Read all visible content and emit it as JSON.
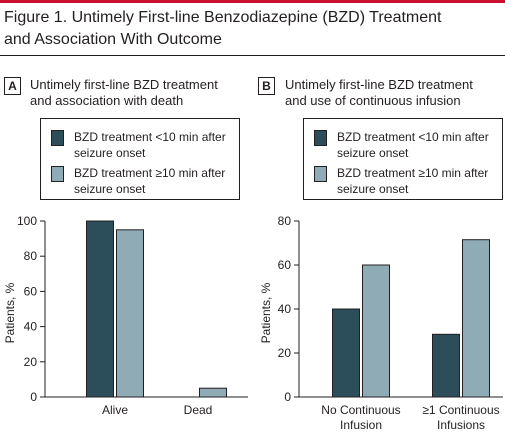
{
  "figure": {
    "title_line1": "Figure 1. Untimely First-line Benzodiazepine (BZD) Treatment",
    "title_line2": "and Association With Outcome"
  },
  "colors": {
    "accent_rule": "#c8102e",
    "series_early": "#2c4d5a",
    "series_late": "#8fabb6"
  },
  "panels": [
    {
      "letter": "A",
      "title_line1": "Untimely first-line BZD treatment",
      "title_line2": "and association with death",
      "legend": [
        {
          "line1": "BZD treatment <10 min after",
          "line2": "seizure onset"
        },
        {
          "line1": "BZD treatment ≥10 min after",
          "line2": "seizure onset"
        }
      ]
    },
    {
      "letter": "B",
      "title_line1": "Untimely first-line BZD treatment",
      "title_line2": "and use of continuous infusion",
      "legend": [
        {
          "line1": "BZD treatment <10 min after",
          "line2": "seizure onset"
        },
        {
          "line1": "BZD treatment ≥10 min after",
          "line2": "seizure onset"
        }
      ]
    }
  ],
  "chart_data": [
    {
      "type": "bar",
      "categories": [
        [
          "Alive"
        ],
        [
          "Dead"
        ]
      ],
      "series": [
        {
          "name": "BZD treatment <10 min after seizure onset",
          "values": [
            100,
            0
          ]
        },
        {
          "name": "BZD treatment ≥10 min after seizure onset",
          "values": [
            95,
            5
          ]
        }
      ],
      "ylabel": "Patients, %",
      "ylim": [
        0,
        100
      ],
      "yticks": [
        0,
        20,
        40,
        60,
        80,
        100
      ],
      "grid": false,
      "legend_position": "top"
    },
    {
      "type": "bar",
      "categories": [
        [
          "No Continuous",
          "Infusion"
        ],
        [
          "≥1 Continuous",
          "Infusions"
        ]
      ],
      "series": [
        {
          "name": "BZD treatment <10 min after seizure onset",
          "values": [
            40,
            28.5
          ]
        },
        {
          "name": "BZD treatment ≥10 min after seizure onset",
          "values": [
            60,
            71.5
          ]
        }
      ],
      "ylabel": "Patients, %",
      "ylim": [
        0,
        80
      ],
      "yticks": [
        0,
        20,
        40,
        60,
        80
      ],
      "grid": false,
      "legend_position": "top"
    }
  ]
}
